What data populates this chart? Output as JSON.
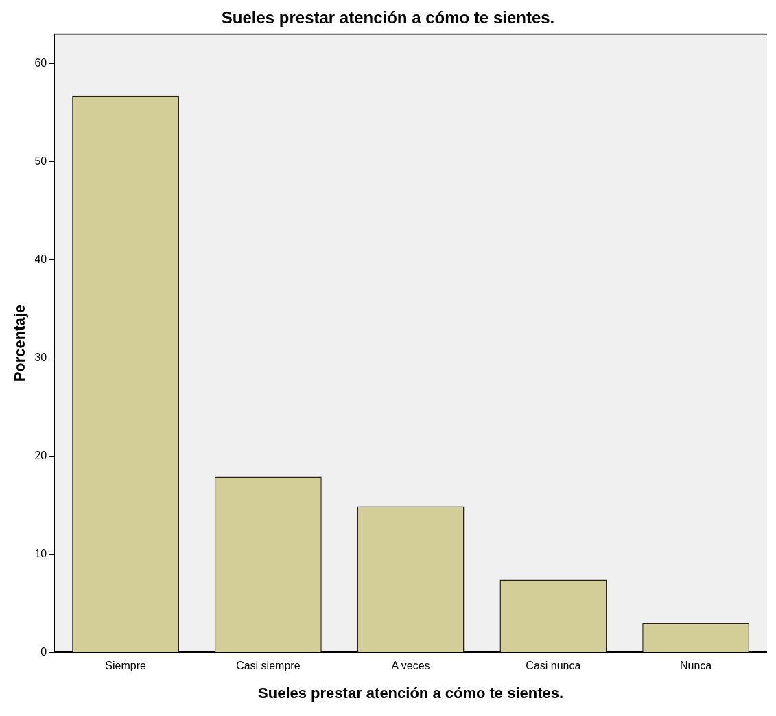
{
  "chart_data": {
    "type": "bar",
    "title": "Sueles prestar atención a cómo te sientes.",
    "xlabel": "Sueles prestar atención a cómo te sientes.",
    "ylabel": "Porcentaje",
    "categories": [
      "Siempre",
      "Casi siempre",
      "A veces",
      "Casi nunca",
      "Nunca"
    ],
    "values": [
      56.7,
      17.9,
      14.9,
      7.4,
      3.0
    ],
    "color": "#d3ce98",
    "ylim": [
      0,
      63
    ],
    "yticks": [
      0,
      10,
      20,
      30,
      40,
      50,
      60
    ],
    "grid": false,
    "legend": false
  }
}
